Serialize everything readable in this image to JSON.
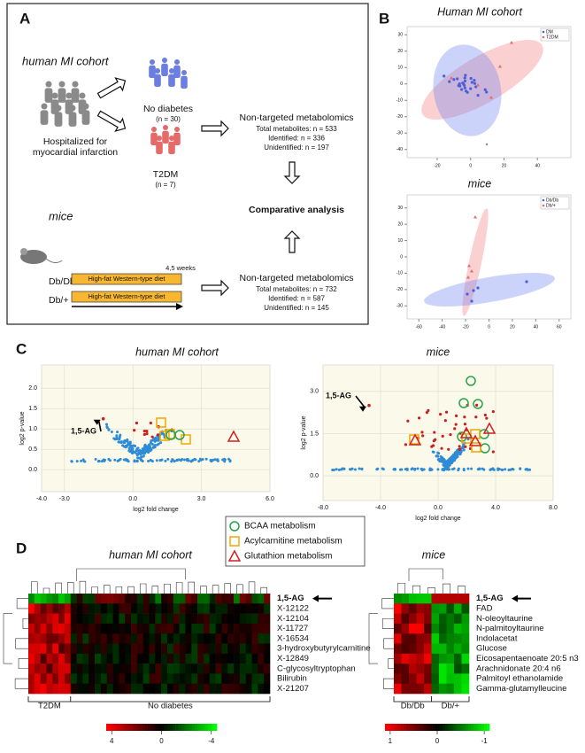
{
  "panel_a": {
    "label": "A",
    "human_title": "human MI cohort",
    "hospitalized": [
      "Hospitalized for",
      "myocardial infarction"
    ],
    "no_diabetes": "No diabetes",
    "no_diabetes_n": "(n = 30)",
    "t2dm": "T2DM",
    "t2dm_n": "(n = 7)",
    "human_metabolomics": {
      "title": "Non-targeted metabolomics",
      "lines": [
        "Total metabolites: n = 533",
        "Identified: n = 336",
        "Unidentified: n = 197"
      ]
    },
    "comparative": "Comparative analysis",
    "mice_title": "mice",
    "duration": "4,5 weeks",
    "groups": [
      "Db/Db",
      "Db/+"
    ],
    "diet": "High-fat Western-type diet",
    "mice_metabolomics": {
      "title": "Non-targeted metabolomics",
      "lines": [
        "Total metabolites: n = 732",
        "Identified: n = 587",
        "Unidentified: n = 145"
      ]
    }
  },
  "panel_b": {
    "label": "B",
    "plots": [
      {
        "title": "Human MI cohort",
        "legend": [
          "DM",
          "T2DM"
        ],
        "xlim": [
          -38,
          60
        ],
        "xticks": [
          -20,
          0,
          20,
          40
        ],
        "ylim": [
          -45,
          35
        ],
        "yticks": [
          30,
          20,
          10,
          0,
          -10,
          -20,
          -30,
          -40
        ]
      },
      {
        "title": "mice",
        "legend": [
          "Db/Db",
          "Db/+"
        ],
        "xlim": [
          -70,
          70
        ],
        "xticks": [
          -60,
          -40,
          -20,
          0,
          20,
          40,
          60
        ],
        "ylim": [
          -38,
          38
        ],
        "yticks": [
          30,
          20,
          10,
          0,
          -10,
          -20,
          -30
        ]
      }
    ]
  },
  "panel_c": {
    "label": "C",
    "plots": [
      {
        "title": "human MI cohort",
        "xlabel": "log2 fold change",
        "ylabel": "log2 p-value",
        "annotation": "1,5-AG",
        "xlim": [
          -4,
          6
        ],
        "xticks": [
          {
            "value": -4,
            "label": "-4.0"
          },
          {
            "value": -3,
            "label": "-3.0"
          },
          {
            "value": 0,
            "label": "0.0"
          },
          {
            "value": 3,
            "label": "3.0"
          },
          {
            "value": 6,
            "label": "6.0"
          }
        ],
        "ylim": [
          -0.54,
          2.57
        ],
        "yticks": [
          {
            "value": 0,
            "label": "0.0"
          },
          0.5,
          {
            "value": 1,
            "label": "1.0"
          },
          1.5,
          {
            "value": 2,
            "label": "2.0"
          }
        ]
      },
      {
        "title": "mice",
        "xlabel": "log2 fold change",
        "ylabel": "log2 p-value",
        "annotation": "1,5-AG",
        "xlim": [
          -8,
          8
        ],
        "xticks": [
          {
            "value": -8,
            "label": "-8.0"
          },
          {
            "value": -4,
            "label": "-4.0"
          },
          {
            "value": 0,
            "label": "0.0"
          },
          {
            "value": 4,
            "label": "4.0"
          },
          {
            "value": 8,
            "label": "8.0"
          }
        ],
        "ylim": [
          -0.88,
          3.94
        ],
        "yticks": [
          {
            "value": 0,
            "label": "0.0"
          },
          1.5,
          {
            "value": 3,
            "label": "3.0"
          }
        ]
      }
    ],
    "legend": [
      "BCAA metabolism",
      "Acylcarnitine metabolism",
      "Glutathion metabolism"
    ]
  },
  "panel_d": {
    "label": "D",
    "heatmaps": [
      {
        "title": "human MI cohort",
        "rows": [
          "1,5-AG",
          "X-12122",
          "X-12104",
          "X-11727",
          "X-16534",
          "3-hydroxybutyrylcarnitine",
          "X-12849",
          "C-glycosyltryptophan",
          "Bilirubin",
          "X-21207"
        ],
        "groups": [
          "T2DM",
          "No diabetes"
        ],
        "scale_ticks": [
          4,
          0,
          -4
        ]
      },
      {
        "title": "mice",
        "rows": [
          "1,5-AG",
          "FAD",
          "N-oleoyltaurine",
          "N-palmitoyltaurine",
          "Indolacetat",
          "Glucose",
          "Eicosapentaenoate 20:5 n3",
          "Arachnidonate 20:4 n6",
          "Palmitoyl ethanolamide",
          "Gamma-glutamylleucine"
        ],
        "groups": [
          "Db/Db",
          "Db/+"
        ],
        "scale_ticks": [
          1,
          0,
          -1
        ]
      }
    ]
  }
}
